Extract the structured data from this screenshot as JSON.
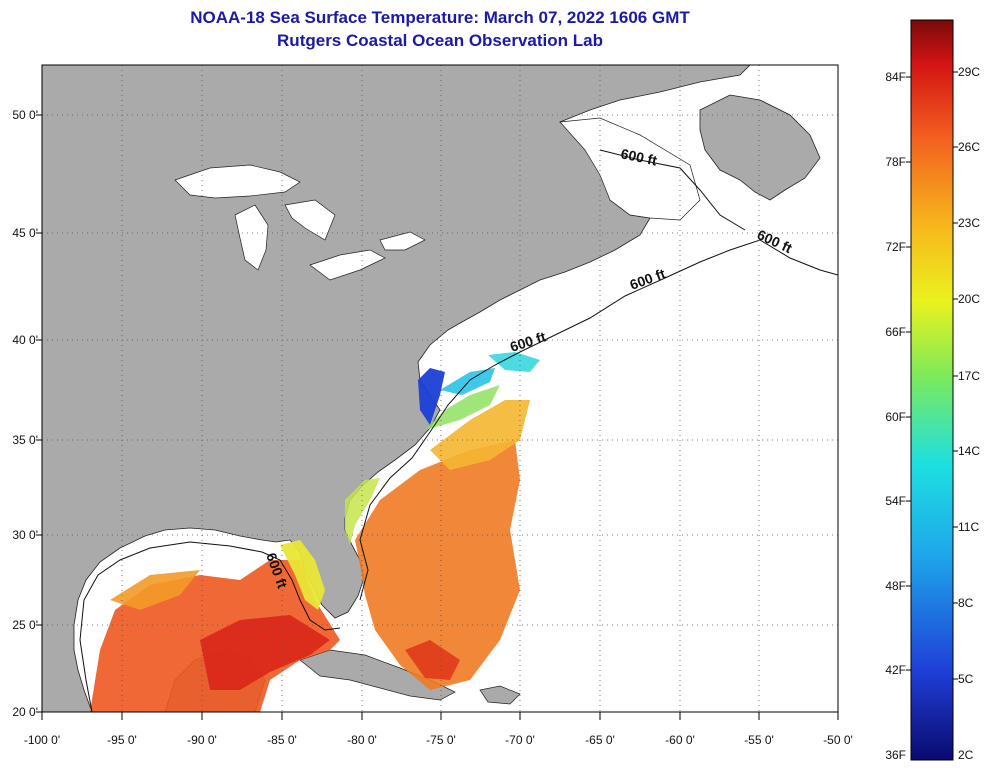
{
  "title": {
    "line1": "NOAA-18 Sea Surface Temperature:  March 07, 2022 1606 GMT",
    "line2": "Rutgers Coastal Ocean Observation Lab"
  },
  "map": {
    "colors": {
      "land": "#aaaaaa",
      "ocean_nodata": "#ffffff",
      "title": "#1a1aa6"
    },
    "latitude_labels": [
      "50 0'",
      "45 0'",
      "40 0'",
      "35 0'",
      "30 0'",
      "25 0'",
      "20 0'"
    ],
    "longitude_labels": [
      "-100 0'",
      "-95 0'",
      "-90 0'",
      "-85 0'",
      "-80 0'",
      "-75 0'",
      "-70 0'",
      "-65 0'",
      "-60 0'",
      "-55 0'",
      "-50 0'"
    ],
    "contour_label": "600 ft"
  },
  "colorbar": {
    "fahrenheit_labels": [
      "84F",
      "78F",
      "72F",
      "66F",
      "60F",
      "54F",
      "48F",
      "42F",
      "36F"
    ],
    "celsius_labels": [
      "29C",
      "26C",
      "23C",
      "20C",
      "17C",
      "14C",
      "11C",
      "8C",
      "5C",
      "2C"
    ]
  }
}
